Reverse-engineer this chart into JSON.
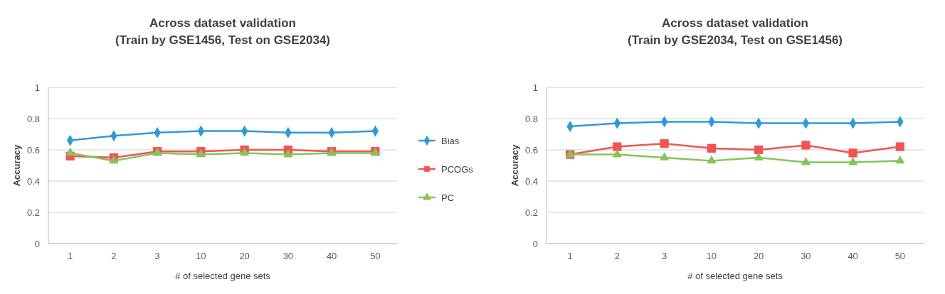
{
  "chart_data": [
    {
      "type": "line",
      "title": "Across dataset validation\n(Train by GSE1456, Test on GSE2034)",
      "xlabel": "# of selected gene sets",
      "ylabel": "Accuracy",
      "categories": [
        "1",
        "2",
        "3",
        "10",
        "20",
        "30",
        "40",
        "50"
      ],
      "ylim": [
        0,
        1
      ],
      "yticks": [
        0,
        0.2,
        0.4,
        0.6,
        0.8,
        1
      ],
      "grid": "y",
      "legend": "right",
      "series": [
        {
          "name": "Bias",
          "color": "#2e9bd6",
          "marker": "diamond",
          "values": [
            0.66,
            0.69,
            0.71,
            0.72,
            0.72,
            0.71,
            0.71,
            0.72
          ]
        },
        {
          "name": "PCOGs",
          "color": "#f05454",
          "marker": "square",
          "values": [
            0.56,
            0.55,
            0.59,
            0.59,
            0.6,
            0.6,
            0.59,
            0.59
          ]
        },
        {
          "name": "PC",
          "color": "#86c45a",
          "marker": "triangle",
          "values": [
            0.58,
            0.53,
            0.58,
            0.57,
            0.58,
            0.57,
            0.58,
            0.58
          ]
        }
      ]
    },
    {
      "type": "line",
      "title": "Across dataset validation\n(Train by GSE2034, Test on GSE1456)",
      "xlabel": "# of selected gene sets",
      "ylabel": "Accuracy",
      "categories": [
        "1",
        "2",
        "3",
        "10",
        "20",
        "30",
        "40",
        "50"
      ],
      "ylim": [
        0,
        1
      ],
      "yticks": [
        0,
        0.2,
        0.4,
        0.6,
        0.8,
        1
      ],
      "grid": "y",
      "series": [
        {
          "color": "#2e9bd6",
          "marker": "diamond",
          "values": [
            0.75,
            0.77,
            0.78,
            0.78,
            0.77,
            0.77,
            0.77,
            0.78
          ]
        },
        {
          "color": "#f05454",
          "marker": "square",
          "values": [
            0.57,
            0.62,
            0.64,
            0.61,
            0.6,
            0.63,
            0.58,
            0.62
          ]
        },
        {
          "color": "#86c45a",
          "marker": "triangle",
          "values": [
            0.57,
            0.57,
            0.55,
            0.53,
            0.55,
            0.52,
            0.52,
            0.53
          ]
        }
      ]
    }
  ]
}
